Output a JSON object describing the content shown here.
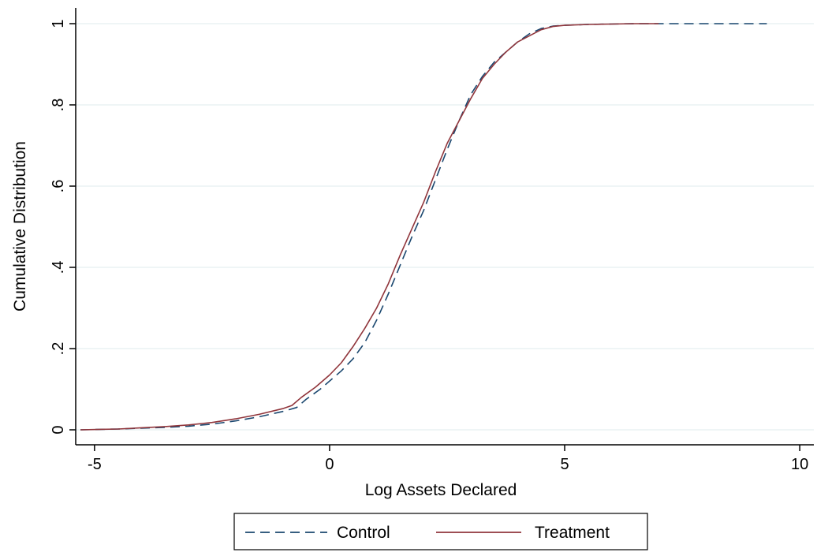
{
  "chart_data": {
    "type": "line",
    "title": "",
    "xlabel": "Log Assets Declared",
    "ylabel": "Cumulative Distribution",
    "xlim": [
      -5.4,
      10.3
    ],
    "ylim": [
      0,
      1
    ],
    "x_ticks": [
      -5,
      0,
      5,
      10
    ],
    "x_tick_labels": [
      "-5",
      "0",
      "5",
      "10"
    ],
    "y_ticks": [
      0,
      0.2,
      0.4,
      0.6,
      0.8,
      1
    ],
    "y_tick_labels": [
      "0",
      ".2",
      ".4",
      ".6",
      ".8",
      "1"
    ],
    "grid": "horizontal",
    "legend": "bottom",
    "series": [
      {
        "name": "Control",
        "color": "#1a476f",
        "style": "dashed",
        "points": [
          [
            -5.3,
            0.0
          ],
          [
            -4.5,
            0.002
          ],
          [
            -4.0,
            0.004
          ],
          [
            -3.5,
            0.006
          ],
          [
            -3.0,
            0.009
          ],
          [
            -2.5,
            0.014
          ],
          [
            -2.0,
            0.022
          ],
          [
            -1.5,
            0.032
          ],
          [
            -1.0,
            0.045
          ],
          [
            -0.7,
            0.055
          ],
          [
            -0.5,
            0.075
          ],
          [
            -0.2,
            0.1
          ],
          [
            0.0,
            0.12
          ],
          [
            0.25,
            0.145
          ],
          [
            0.5,
            0.175
          ],
          [
            0.75,
            0.215
          ],
          [
            1.0,
            0.27
          ],
          [
            1.25,
            0.335
          ],
          [
            1.5,
            0.405
          ],
          [
            1.75,
            0.475
          ],
          [
            2.0,
            0.54
          ],
          [
            2.25,
            0.615
          ],
          [
            2.5,
            0.69
          ],
          [
            2.75,
            0.76
          ],
          [
            3.0,
            0.825
          ],
          [
            3.25,
            0.87
          ],
          [
            3.5,
            0.905
          ],
          [
            3.75,
            0.93
          ],
          [
            4.0,
            0.955
          ],
          [
            4.25,
            0.975
          ],
          [
            4.5,
            0.988
          ],
          [
            4.75,
            0.994
          ],
          [
            5.0,
            0.996
          ],
          [
            5.5,
            0.998
          ],
          [
            6.0,
            0.999
          ],
          [
            6.5,
            1.0
          ],
          [
            9.3,
            1.0
          ]
        ]
      },
      {
        "name": "Treatment",
        "color": "#90353b",
        "style": "solid",
        "points": [
          [
            -5.3,
            0.0
          ],
          [
            -4.5,
            0.002
          ],
          [
            -4.0,
            0.005
          ],
          [
            -3.5,
            0.008
          ],
          [
            -3.0,
            0.012
          ],
          [
            -2.5,
            0.018
          ],
          [
            -2.0,
            0.027
          ],
          [
            -1.5,
            0.038
          ],
          [
            -1.0,
            0.052
          ],
          [
            -0.8,
            0.06
          ],
          [
            -0.6,
            0.08
          ],
          [
            -0.3,
            0.105
          ],
          [
            0.0,
            0.135
          ],
          [
            0.25,
            0.165
          ],
          [
            0.5,
            0.205
          ],
          [
            0.75,
            0.25
          ],
          [
            1.0,
            0.3
          ],
          [
            1.25,
            0.36
          ],
          [
            1.5,
            0.43
          ],
          [
            1.75,
            0.495
          ],
          [
            2.0,
            0.56
          ],
          [
            2.25,
            0.635
          ],
          [
            2.5,
            0.705
          ],
          [
            2.75,
            0.76
          ],
          [
            3.0,
            0.815
          ],
          [
            3.25,
            0.865
          ],
          [
            3.5,
            0.9
          ],
          [
            3.75,
            0.93
          ],
          [
            4.0,
            0.955
          ],
          [
            4.25,
            0.97
          ],
          [
            4.5,
            0.985
          ],
          [
            4.75,
            0.993
          ],
          [
            5.0,
            0.996
          ],
          [
            5.5,
            0.998
          ],
          [
            6.0,
            0.999
          ],
          [
            6.5,
            1.0
          ],
          [
            7.0,
            1.0
          ]
        ]
      }
    ]
  }
}
